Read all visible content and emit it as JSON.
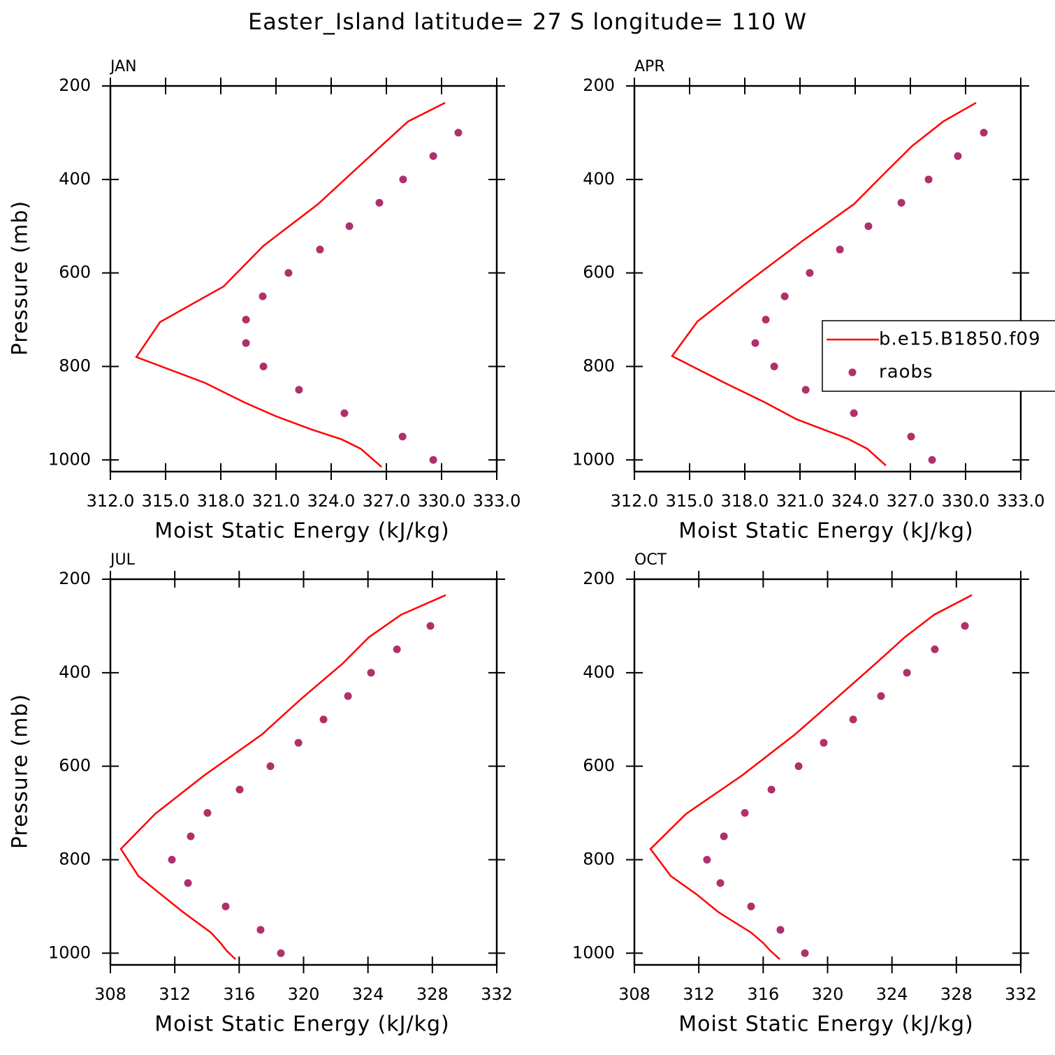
{
  "title": "Easter_Island  latitude= 27 S longitude= 110 W",
  "chart_data": [
    {
      "type": "line",
      "title": "JAN",
      "xlabel": "Moist Static Energy (kJ/kg)",
      "ylabel": "Pressure (mb)",
      "xlim": [
        312,
        333
      ],
      "ylim": [
        1025,
        200
      ],
      "xticks": [
        {
          "value": 312,
          "label": "312.0"
        },
        {
          "value": 315,
          "label": "315.0"
        },
        {
          "value": 318,
          "label": "318.0"
        },
        {
          "value": 321,
          "label": "321.0"
        },
        {
          "value": 324,
          "label": "324.0"
        },
        {
          "value": 327,
          "label": "327.0"
        },
        {
          "value": 330,
          "label": "330.0"
        },
        {
          "value": 333,
          "label": "333.0"
        }
      ],
      "yticks": [
        200,
        400,
        600,
        800,
        1000
      ],
      "series": [
        {
          "style": "line",
          "color": "#ff0000",
          "x": [
            330.19,
            328.18,
            326.7,
            325.18,
            323.28,
            320.32,
            318.15,
            314.7,
            313.41,
            317.13,
            319.29,
            320.96,
            322.94,
            324.57,
            325.6,
            326.74
          ],
          "values": [
            236,
            276,
            329,
            384,
            453,
            542,
            629,
            705,
            780,
            835,
            877,
            906,
            935,
            956,
            976,
            1015
          ]
        },
        {
          "style": "markers",
          "color": "#b0306a",
          "x": [
            330.91,
            329.55,
            327.91,
            326.62,
            324.99,
            323.39,
            321.68,
            320.28,
            319.37,
            319.37,
            320.32,
            322.25,
            324.72,
            327.88,
            329.55
          ],
          "values": [
            300,
            350,
            400,
            450,
            500,
            550,
            600,
            650,
            700,
            750,
            800,
            850,
            900,
            950,
            1000
          ]
        }
      ]
    },
    {
      "type": "line",
      "title": "APR",
      "xlabel": "Moist Static Energy (kJ/kg)",
      "xlim": [
        312,
        333
      ],
      "ylim": [
        1025,
        200
      ],
      "xticks": [
        {
          "value": 312,
          "label": "312.0"
        },
        {
          "value": 315,
          "label": "315.0"
        },
        {
          "value": 318,
          "label": "318.0"
        },
        {
          "value": 321,
          "label": "321.0"
        },
        {
          "value": 324,
          "label": "324.0"
        },
        {
          "value": 327,
          "label": "327.0"
        },
        {
          "value": 330,
          "label": "330.0"
        },
        {
          "value": 333,
          "label": "333.0"
        }
      ],
      "yticks": [
        200,
        400,
        600,
        800,
        1000
      ],
      "legend": "right",
      "series": [
        {
          "name": "b.e15.B1850.f09",
          "style": "line",
          "color": "#ff0000",
          "x": [
            330.57,
            328.79,
            327.08,
            325.67,
            323.93,
            321.12,
            318.08,
            315.42,
            314.05,
            316.9,
            319.1,
            320.81,
            323.62,
            324.65,
            325.67
          ],
          "values": [
            236,
            276,
            329,
            384,
            453,
            532,
            622,
            704,
            778,
            835,
            877,
            913,
            955,
            976,
            1012
          ]
        },
        {
          "name": "raobs",
          "style": "markers",
          "color": "#b0306a",
          "x": [
            330.99,
            329.58,
            327.99,
            326.51,
            324.72,
            323.17,
            321.53,
            320.17,
            319.14,
            318.57,
            319.6,
            321.31,
            323.93,
            327.04,
            328.18
          ],
          "values": [
            300,
            350,
            400,
            450,
            500,
            550,
            600,
            650,
            700,
            750,
            800,
            850,
            900,
            950,
            1000
          ]
        }
      ]
    },
    {
      "type": "line",
      "title": "JUL",
      "xlabel": "Moist Static Energy (kJ/kg)",
      "ylabel": "Pressure (mb)",
      "xlim": [
        308,
        332
      ],
      "ylim": [
        1025,
        200
      ],
      "xticks": [
        308,
        312,
        316,
        320,
        324,
        328,
        332
      ],
      "yticks": [
        200,
        400,
        600,
        800,
        1000
      ],
      "series": [
        {
          "style": "line",
          "color": "#ff0000",
          "x": [
            328.83,
            326.06,
            324.06,
            322.41,
            319.85,
            317.42,
            313.82,
            310.78,
            308.65,
            309.74,
            311.13,
            312.51,
            314.25,
            314.86,
            315.2,
            315.77
          ],
          "values": [
            234,
            276,
            324,
            381,
            456,
            532,
            620,
            702,
            777,
            835,
            874,
            912,
            956,
            979,
            994,
            1013
          ]
        },
        {
          "style": "markers",
          "color": "#b0306a",
          "x": [
            327.88,
            325.8,
            324.19,
            322.76,
            321.24,
            319.68,
            317.94,
            316.03,
            314.03,
            312.99,
            311.82,
            312.82,
            315.16,
            317.33,
            318.59
          ],
          "values": [
            300,
            350,
            400,
            450,
            500,
            550,
            600,
            650,
            700,
            750,
            800,
            850,
            900,
            950,
            1000
          ]
        }
      ]
    },
    {
      "type": "line",
      "title": "OCT",
      "xlabel": "Moist Static Energy (kJ/kg)",
      "xlim": [
        308,
        332
      ],
      "ylim": [
        1025,
        200
      ],
      "xticks": [
        308,
        312,
        316,
        320,
        324,
        328,
        332
      ],
      "yticks": [
        200,
        400,
        600,
        800,
        1000
      ],
      "series": [
        {
          "style": "line",
          "color": "#ff0000",
          "x": [
            328.96,
            326.62,
            324.8,
            322.97,
            320.5,
            317.98,
            314.68,
            311.21,
            309.0,
            310.26,
            311.86,
            313.21,
            315.25,
            316.03,
            316.42,
            317.03
          ],
          "values": [
            234,
            276,
            324,
            381,
            456,
            532,
            620,
            702,
            777,
            835,
            874,
            912,
            956,
            979,
            994,
            1013
          ]
        },
        {
          "style": "markers",
          "color": "#b0306a",
          "x": [
            328.53,
            326.66,
            324.93,
            323.32,
            321.59,
            319.76,
            318.2,
            316.51,
            314.86,
            313.56,
            312.51,
            313.34,
            315.25,
            317.07,
            318.59
          ],
          "values": [
            300,
            350,
            400,
            450,
            500,
            550,
            600,
            650,
            700,
            750,
            800,
            850,
            900,
            950,
            1000
          ]
        }
      ]
    }
  ]
}
